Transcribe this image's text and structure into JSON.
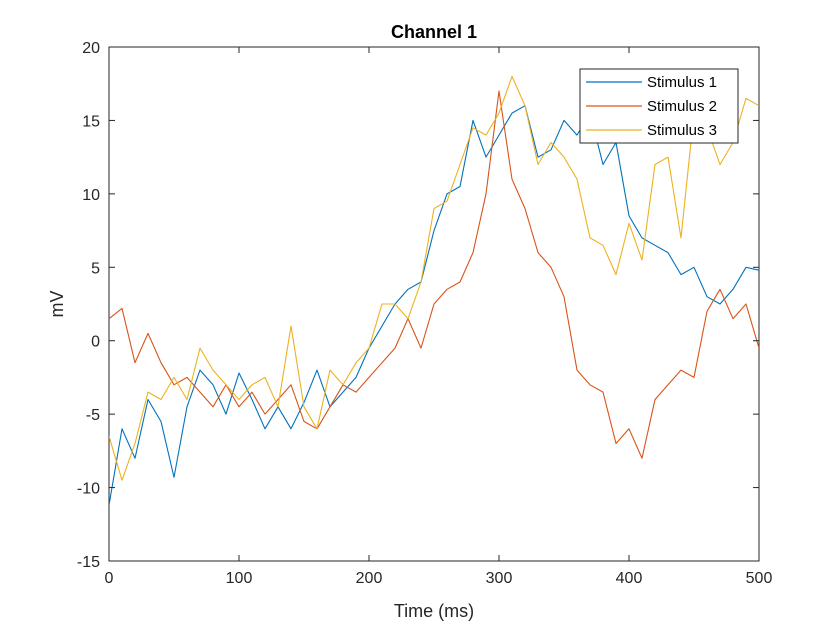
{
  "chart_data": {
    "type": "line",
    "title": "Channel 1",
    "xlabel": "Time (ms)",
    "ylabel": "mV",
    "xlim": [
      0,
      500
    ],
    "ylim": [
      -15,
      20
    ],
    "xticks": [
      0,
      100,
      200,
      300,
      400,
      500
    ],
    "yticks": [
      -15,
      -10,
      -5,
      0,
      5,
      10,
      15,
      20
    ],
    "grid": false,
    "legend_position": "top-right",
    "x": [
      0,
      10,
      20,
      30,
      40,
      50,
      60,
      70,
      80,
      90,
      100,
      110,
      120,
      130,
      140,
      150,
      160,
      170,
      180,
      190,
      200,
      210,
      220,
      230,
      240,
      250,
      260,
      270,
      280,
      290,
      300,
      310,
      320,
      330,
      340,
      350,
      360,
      370,
      380,
      390,
      400,
      410,
      420,
      430,
      440,
      450,
      460,
      470,
      480,
      490,
      500
    ],
    "series": [
      {
        "name": "Stimulus 1",
        "color": "#0072BD",
        "values": [
          -11.2,
          -6.0,
          -8.0,
          -4.0,
          -5.5,
          -9.3,
          -4.5,
          -2.0,
          -3.0,
          -5.0,
          -2.2,
          -4.0,
          -6.0,
          -4.5,
          -6.0,
          -4.2,
          -2.0,
          -4.5,
          -3.5,
          -2.5,
          -0.5,
          1.0,
          2.5,
          3.5,
          4.0,
          7.5,
          10.0,
          10.5,
          15.0,
          12.5,
          14.0,
          15.5,
          16.0,
          12.5,
          13.0,
          15.0,
          14.0,
          15.5,
          12.0,
          13.5,
          8.5,
          7.0,
          6.5,
          6.0,
          4.5,
          5.0,
          3.0,
          2.5,
          3.5,
          5.0,
          4.8
        ]
      },
      {
        "name": "Stimulus 2",
        "color": "#D95319",
        "values": [
          1.5,
          2.2,
          -1.5,
          0.5,
          -1.5,
          -3.0,
          -2.5,
          -3.5,
          -4.5,
          -3.0,
          -4.5,
          -3.5,
          -5.0,
          -4.0,
          -3.0,
          -5.5,
          -6.0,
          -4.5,
          -3.0,
          -3.5,
          -2.5,
          -1.5,
          -0.5,
          1.5,
          -0.5,
          2.5,
          3.5,
          4.0,
          6.0,
          10.0,
          17.0,
          11.0,
          9.0,
          6.0,
          5.0,
          3.0,
          -2.0,
          -3.0,
          -3.5,
          -7.0,
          -6.0,
          -8.0,
          -4.0,
          -3.0,
          -2.0,
          -2.5,
          2.0,
          3.5,
          1.5,
          2.5,
          -0.5
        ]
      },
      {
        "name": "Stimulus 3",
        "color": "#EDB120",
        "values": [
          -6.5,
          -9.5,
          -7.0,
          -3.5,
          -4.0,
          -2.5,
          -4.0,
          -0.5,
          -2.0,
          -3.0,
          -4.0,
          -3.0,
          -2.5,
          -4.5,
          1.0,
          -4.5,
          -6.0,
          -2.0,
          -3.0,
          -1.5,
          -0.5,
          2.5,
          2.5,
          1.5,
          4.0,
          9.0,
          9.5,
          12.0,
          14.5,
          14.0,
          15.5,
          18.0,
          16.0,
          12.0,
          13.5,
          12.5,
          11.0,
          7.0,
          6.5,
          4.5,
          8.0,
          5.5,
          12.0,
          12.5,
          7.0,
          15.5,
          14.5,
          12.0,
          13.5,
          16.5,
          16.0
        ]
      }
    ]
  }
}
